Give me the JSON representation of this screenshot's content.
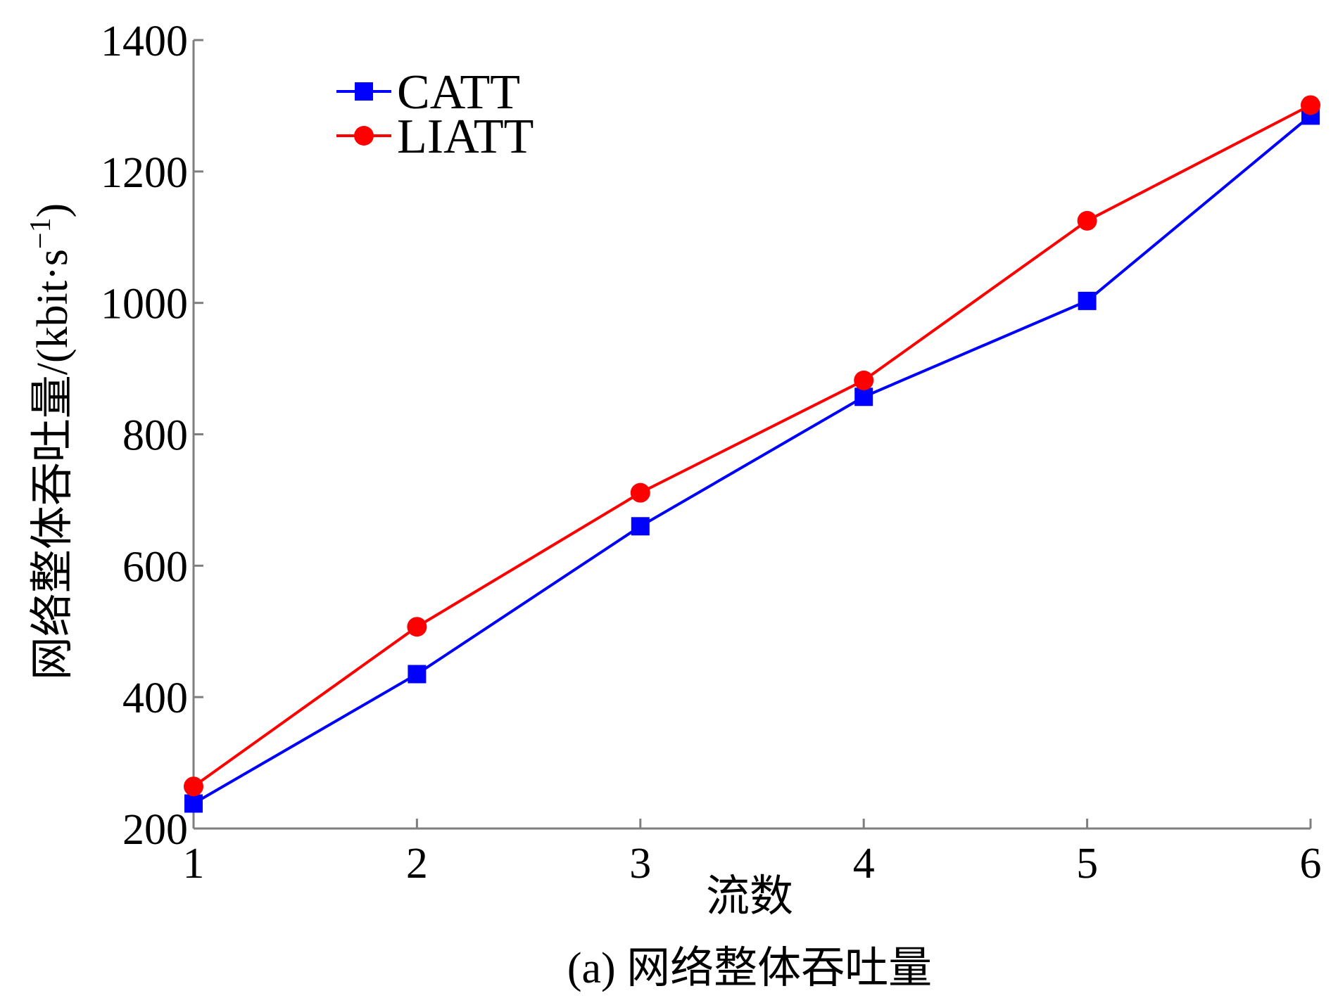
{
  "chart_data": {
    "type": "line",
    "title": "",
    "caption": "(a) 网络整体吞吐量",
    "xlabel": "流数",
    "ylabel": "网络整体吞吐量/(kbit·s",
    "ylabel_superscript": "−1",
    "ylabel_close": ")",
    "x": [
      1,
      2,
      3,
      4,
      5,
      6
    ],
    "xlim": [
      1,
      6
    ],
    "ylim": [
      200,
      1400
    ],
    "xticks": [
      "1",
      "2",
      "3",
      "4",
      "5",
      "6"
    ],
    "yticks": [
      "200",
      "400",
      "600",
      "800",
      "1000",
      "1200",
      "1400"
    ],
    "grid": false,
    "legend_position": "top-left",
    "series": [
      {
        "name": "CATT",
        "color": "#0000ff",
        "marker": "square",
        "values": [
          238,
          435,
          660,
          857,
          1003,
          1285
        ]
      },
      {
        "name": "LIATT",
        "color": "#ff0000",
        "marker": "circle",
        "values": [
          264,
          507,
          711,
          882,
          1125,
          1301
        ]
      }
    ]
  }
}
